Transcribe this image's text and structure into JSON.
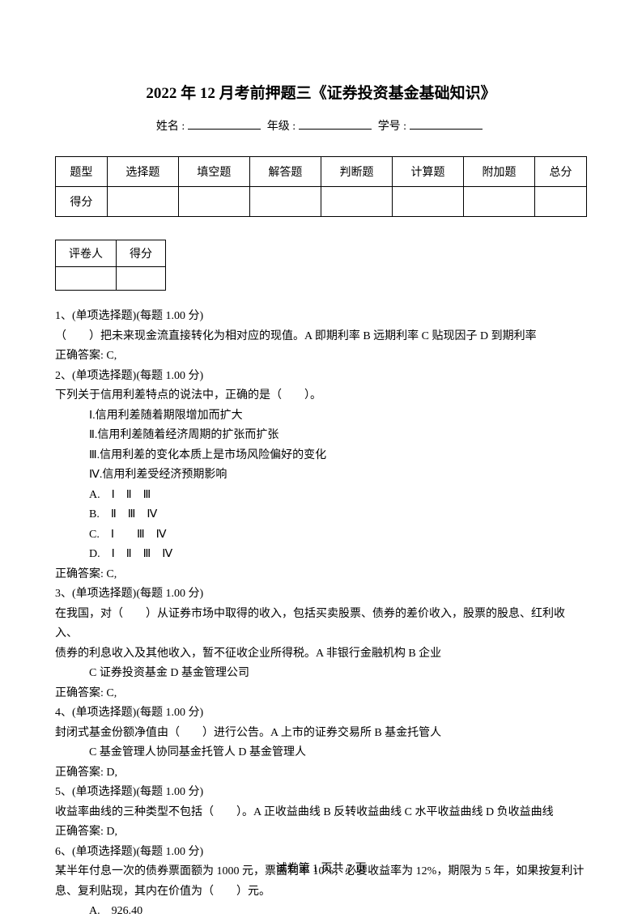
{
  "title": "2022 年 12 月考前押题三《证券投资基金基础知识》",
  "info": {
    "name_label": "姓名 :",
    "grade_label": "年级 :",
    "id_label": "学号 :"
  },
  "score_table": {
    "headers": [
      "题型",
      "选择题",
      "填空题",
      "解答题",
      "判断题",
      "计算题",
      "附加题",
      "总分"
    ],
    "row_label": "得分"
  },
  "grader_table": {
    "col1": "评卷人",
    "col2": "得分"
  },
  "questions": {
    "q1": {
      "header": "1、(单项选择题)(每题 1.00 分)",
      "body": "（　　）把未来现金流直接转化为相对应的现值。A 即期利率 B 远期利率 C 贴现因子 D 到期利率",
      "answer": "正确答案: C,"
    },
    "q2": {
      "header": "2、(单项选择题)(每题 1.00 分)",
      "body": "下列关于信用利差特点的说法中，正确的是（　　）。",
      "i1": "Ⅰ.信用利差随着期限增加而扩大",
      "i2": "Ⅱ.信用利差随着经济周期的扩张而扩张",
      "i3": "Ⅲ.信用利差的变化本质上是市场风险偏好的变化",
      "i4": "Ⅳ.信用利差受经济预期影响",
      "a": "A.　Ⅰ　Ⅱ　Ⅲ",
      "b": "B.　Ⅱ　Ⅲ　Ⅳ",
      "c": "C.　Ⅰ　　Ⅲ　Ⅳ",
      "d": "D.　Ⅰ　Ⅱ　Ⅲ　Ⅳ",
      "answer": "正确答案: C,"
    },
    "q3": {
      "header": "3、(单项选择题)(每题 1.00 分)",
      "body1": "在我国，对（　　）从证券市场中取得的收入，包括买卖股票、债券的差价收入，股票的股息、红利收入、",
      "body2": "债券的利息收入及其他收入，暂不征收企业所得税。A 非银行金融机构 B 企业",
      "body3": "C 证券投资基金 D 基金管理公司",
      "answer": "正确答案: C,"
    },
    "q4": {
      "header": "4、(单项选择题)(每题 1.00 分)",
      "body1": "封闭式基金份额净值由（　　）进行公告。A 上市的证券交易所 B 基金托管人",
      "body2": "C 基金管理人协同基金托管人 D 基金管理人",
      "answer": "正确答案: D,"
    },
    "q5": {
      "header": "5、(单项选择题)(每题 1.00 分)",
      "body": "收益率曲线的三种类型不包括（　　）。A 正收益曲线 B 反转收益曲线 C 水平收益曲线 D 负收益曲线",
      "answer": "正确答案: D,"
    },
    "q6": {
      "header": "6、(单项选择题)(每题 1.00 分)",
      "body1": "某半年付息一次的债券票面额为 1000 元，票面利率 10%，必要收益率为 12%，期限为 5 年，如果按复利计",
      "body2": "息、复利贴现，其内在价值为（　　）元。",
      "a": "A.　926.40"
    }
  },
  "footer": "试卷第 1 页共 7 页"
}
